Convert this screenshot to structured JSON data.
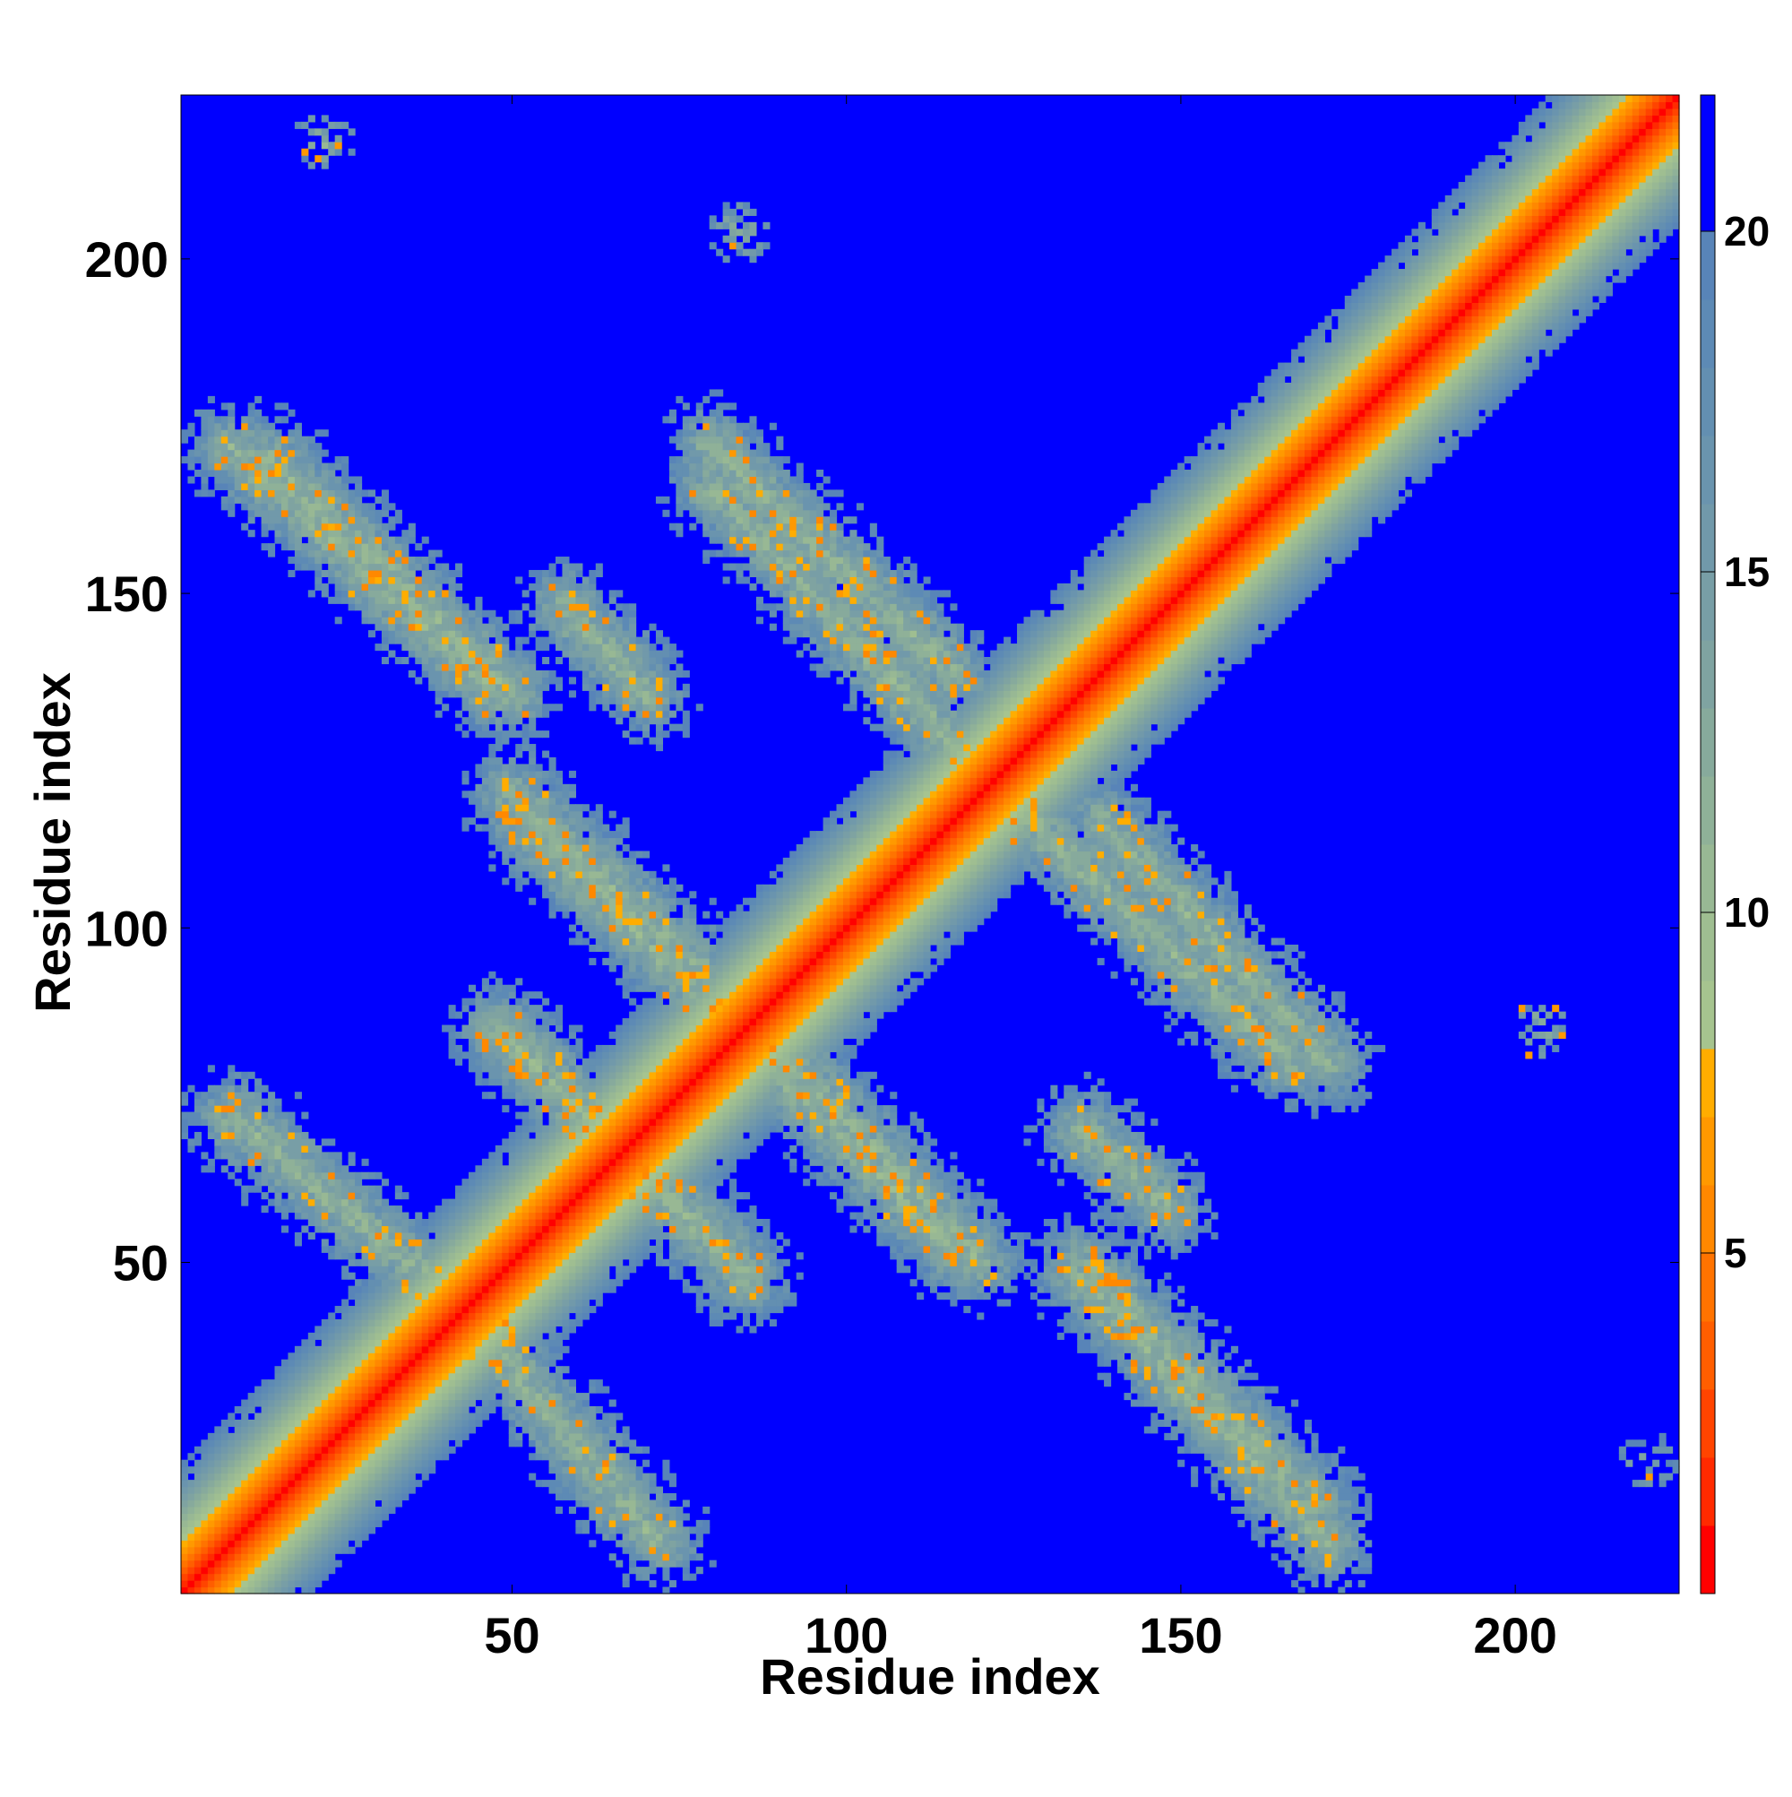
{
  "chart_data": {
    "type": "heatmap",
    "title": "",
    "xlabel": "Residue index",
    "ylabel": "Residue index",
    "n_residues": 224,
    "xlim": [
      0.5,
      224.5
    ],
    "ylim": [
      0.5,
      224.5
    ],
    "x_ticks": [
      50,
      100,
      150,
      200
    ],
    "y_ticks": [
      50,
      100,
      150,
      200
    ],
    "x_tick_labels": [
      "50",
      "100",
      "150",
      "200"
    ],
    "y_tick_labels": [
      "50",
      "100",
      "150",
      "200"
    ],
    "colorbar": {
      "range": [
        0,
        22
      ],
      "ticks": [
        5,
        10,
        15,
        20
      ],
      "tick_labels": [
        "5",
        "10",
        "15",
        "20"
      ],
      "levels": [
        {
          "min": 0,
          "max": 1,
          "color": "#ff0000"
        },
        {
          "min": 1,
          "max": 2,
          "color": "#ff2a00"
        },
        {
          "min": 2,
          "max": 3,
          "color": "#ff4400"
        },
        {
          "min": 3,
          "max": 4,
          "color": "#ff5e00"
        },
        {
          "min": 4,
          "max": 5,
          "color": "#ff7300"
        },
        {
          "min": 5,
          "max": 6,
          "color": "#ff8800"
        },
        {
          "min": 6,
          "max": 7,
          "color": "#ff9900"
        },
        {
          "min": 7,
          "max": 8,
          "color": "#ffad00"
        },
        {
          "min": 8,
          "max": 9,
          "color": "#a6c48f"
        },
        {
          "min": 9,
          "max": 10,
          "color": "#9fbe91"
        },
        {
          "min": 10,
          "max": 11,
          "color": "#98b894"
        },
        {
          "min": 11,
          "max": 12,
          "color": "#8fb198"
        },
        {
          "min": 12,
          "max": 13,
          "color": "#87aa9c"
        },
        {
          "min": 13,
          "max": 14,
          "color": "#7fa3a1"
        },
        {
          "min": 14,
          "max": 15,
          "color": "#789ea6"
        },
        {
          "min": 15,
          "max": 16,
          "color": "#7199aa"
        },
        {
          "min": 16,
          "max": 17,
          "color": "#6a94ae"
        },
        {
          "min": 17,
          "max": 18,
          "color": "#638fb1"
        },
        {
          "min": 18,
          "max": 19,
          "color": "#5d8ab5"
        },
        {
          "min": 19,
          "max": 20,
          "color": "#5884b8"
        },
        {
          "min": 20,
          "max": 22,
          "color": "#0000ff"
        }
      ]
    },
    "structure": {
      "diagonal": {
        "from": 1,
        "to": 224
      },
      "antiparallel_bands": [
        {
          "a_from": 8,
          "a_to": 43,
          "b_from": 72,
          "b_to": 43
        },
        {
          "a_from": 48,
          "a_to": 85,
          "b_from": 85,
          "b_to": 48
        },
        {
          "a_from": 8,
          "a_to": 48,
          "b_from": 172,
          "b_to": 135
        },
        {
          "a_from": 50,
          "a_to": 82,
          "b_from": 120,
          "b_to": 90
        },
        {
          "a_from": 88,
          "a_to": 116,
          "b_from": 80,
          "b_to": 52
        },
        {
          "a_from": 80,
          "a_to": 116,
          "b_from": 172,
          "b_to": 138
        },
        {
          "a_from": 118,
          "a_to": 166,
          "b_from": 125,
          "b_to": 80
        },
        {
          "a_from": 135,
          "a_to": 170,
          "b_from": 50,
          "b_to": 14
        },
        {
          "a_from": 135,
          "a_to": 148,
          "b_from": 70,
          "b_to": 58
        }
      ],
      "clusters": [
        {
          "x": 22,
          "y": 218
        },
        {
          "x": 84,
          "y": 204
        },
        {
          "x": 204,
          "y": 85
        },
        {
          "x": 220,
          "y": 20
        },
        {
          "x": 5,
          "y": 8
        },
        {
          "x": 178,
          "y": 178
        },
        {
          "x": 192,
          "y": 194
        }
      ]
    }
  }
}
